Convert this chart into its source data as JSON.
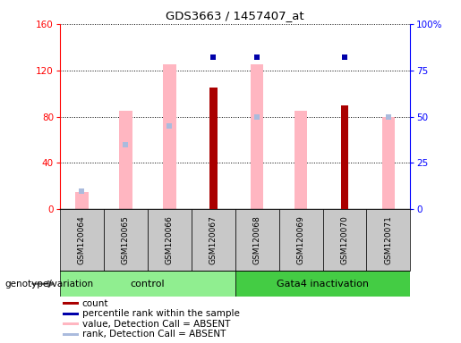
{
  "title": "GDS3663 / 1457407_at",
  "samples": [
    "GSM120064",
    "GSM120065",
    "GSM120066",
    "GSM120067",
    "GSM120068",
    "GSM120069",
    "GSM120070",
    "GSM120071"
  ],
  "pink_bars": [
    15,
    85,
    125,
    0,
    125,
    85,
    0,
    80
  ],
  "light_blue_ranks": [
    10,
    35,
    45,
    0,
    50,
    0,
    0,
    50
  ],
  "count_bars": [
    0,
    0,
    0,
    105,
    0,
    0,
    90,
    0
  ],
  "percentile_rank": [
    0,
    0,
    0,
    82,
    82,
    0,
    82,
    0
  ],
  "ylim_left": [
    0,
    160
  ],
  "ylim_right": [
    0,
    100
  ],
  "yticks_left": [
    0,
    40,
    80,
    120,
    160
  ],
  "yticks_right": [
    0,
    25,
    50,
    75,
    100
  ],
  "ytick_labels_right": [
    "0",
    "25",
    "50",
    "75",
    "100%"
  ],
  "color_count": "#AA0000",
  "color_percentile": "#0000AA",
  "color_pink": "#FFB6C1",
  "color_lightblue": "#AABBDD",
  "control_color": "#90EE90",
  "gata_color": "#44CC44",
  "control_label": "control",
  "gata_label": "Gata4 inactivation",
  "genotype_label": "genotype/variation",
  "legend_items": [
    {
      "color": "#AA0000",
      "label": "count"
    },
    {
      "color": "#0000AA",
      "label": "percentile rank within the sample"
    },
    {
      "color": "#FFB6C1",
      "label": "value, Detection Call = ABSENT"
    },
    {
      "color": "#AABBDD",
      "label": "rank, Detection Call = ABSENT"
    }
  ]
}
